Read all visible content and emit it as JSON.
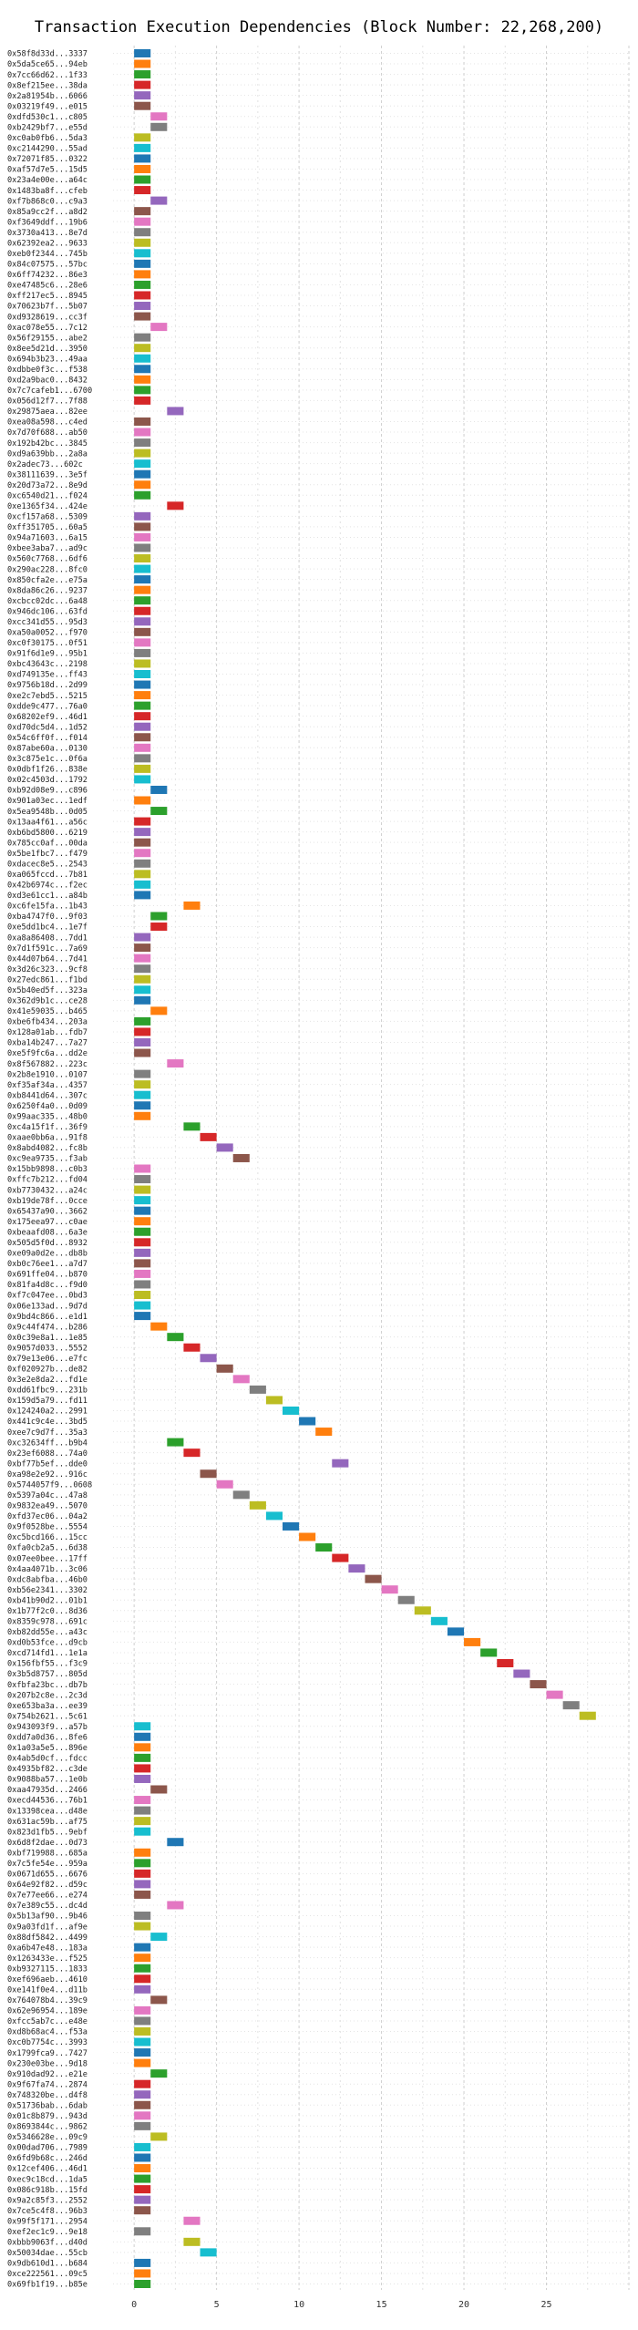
{
  "chart_data": {
    "type": "bar",
    "orientation": "horizontal",
    "title": "Transaction Execution Dependencies (Block Number: 22,268,200)",
    "xlabel": "",
    "ylabel": "",
    "xlim": [
      -1.5,
      30
    ],
    "xticks": [
      0,
      5,
      10,
      15,
      20,
      25
    ],
    "grid": true,
    "legend": "none",
    "palette": [
      "#1f77b4",
      "#ff7f0e",
      "#2ca02c",
      "#d62728",
      "#9467bd",
      "#8c564b",
      "#e377c2",
      "#7f7f7f",
      "#bcbd22",
      "#17becf"
    ],
    "bar_width": 1,
    "transactions": [
      {
        "hash": "0x58f8d33d...3337",
        "start": 0
      },
      {
        "hash": "0x5da5ce65...94eb",
        "start": 0
      },
      {
        "hash": "0x7cc66d62...1f33",
        "start": 0
      },
      {
        "hash": "0x8ef215ee...38da",
        "start": 0
      },
      {
        "hash": "0x2a81954b...6066",
        "start": 0
      },
      {
        "hash": "0x03219f49...e015",
        "start": 0
      },
      {
        "hash": "0xdfd530c1...c805",
        "start": 1
      },
      {
        "hash": "0xb2429bf7...e55d",
        "start": 1
      },
      {
        "hash": "0xc0ab0fb6...5da3",
        "start": 0
      },
      {
        "hash": "0xc2144290...55ad",
        "start": 0
      },
      {
        "hash": "0x72071f85...0322",
        "start": 0
      },
      {
        "hash": "0xaf57d7e5...15d5",
        "start": 0
      },
      {
        "hash": "0x23a4e00e...a64c",
        "start": 0
      },
      {
        "hash": "0x1483ba8f...cfeb",
        "start": 0
      },
      {
        "hash": "0xf7b868c0...c9a3",
        "start": 1
      },
      {
        "hash": "0x85a9cc2f...a8d2",
        "start": 0
      },
      {
        "hash": "0xf3649ddf...19b6",
        "start": 0
      },
      {
        "hash": "0x3730a413...8e7d",
        "start": 0
      },
      {
        "hash": "0x62392ea2...9633",
        "start": 0
      },
      {
        "hash": "0xeb0f2344...745b",
        "start": 0
      },
      {
        "hash": "0x84c07575...57bc",
        "start": 0
      },
      {
        "hash": "0x6ff74232...86e3",
        "start": 0
      },
      {
        "hash": "0xe47485c6...28e6",
        "start": 0
      },
      {
        "hash": "0xff217ec5...8945",
        "start": 0
      },
      {
        "hash": "0x70623b7f...5b07",
        "start": 0
      },
      {
        "hash": "0xd9328619...cc3f",
        "start": 0
      },
      {
        "hash": "0xac078e55...7c12",
        "start": 1
      },
      {
        "hash": "0x56f29155...abe2",
        "start": 0
      },
      {
        "hash": "0x8ee5d21d...3950",
        "start": 0
      },
      {
        "hash": "0x694b3b23...49aa",
        "start": 0
      },
      {
        "hash": "0xdbbe0f3c...f538",
        "start": 0
      },
      {
        "hash": "0xd2a9bac0...8432",
        "start": 0
      },
      {
        "hash": "0x7c7cafeb1...6700",
        "start": 0
      },
      {
        "hash": "0x056d12f7...7f88",
        "start": 0
      },
      {
        "hash": "0x29875aea...82ee",
        "start": 2
      },
      {
        "hash": "0xea08a598...c4ed",
        "start": 0
      },
      {
        "hash": "0x7d70f688...ab50",
        "start": 0
      },
      {
        "hash": "0x192b42bc...3845",
        "start": 0
      },
      {
        "hash": "0xd9a639bb...2a8a",
        "start": 0
      },
      {
        "hash": "0x2adec73...602c",
        "start": 0
      },
      {
        "hash": "0x38111639...3e5f",
        "start": 0
      },
      {
        "hash": "0x20d73a72...8e9d",
        "start": 0
      },
      {
        "hash": "0xc6540d21...f024",
        "start": 0
      },
      {
        "hash": "0xe1365f34...424e",
        "start": 2
      },
      {
        "hash": "0xcf157a68...5309",
        "start": 0
      },
      {
        "hash": "0xff351705...60a5",
        "start": 0
      },
      {
        "hash": "0x94a71603...6a15",
        "start": 0
      },
      {
        "hash": "0xbee3aba7...ad9c",
        "start": 0
      },
      {
        "hash": "0x560c7768...6df6",
        "start": 0
      },
      {
        "hash": "0x290ac228...8fc0",
        "start": 0
      },
      {
        "hash": "0x850cfa2e...e75a",
        "start": 0
      },
      {
        "hash": "0x8da86c26...9237",
        "start": 0
      },
      {
        "hash": "0xcbcc02dc...6a48",
        "start": 0
      },
      {
        "hash": "0x946dc106...63fd",
        "start": 0
      },
      {
        "hash": "0xcc341d55...95d3",
        "start": 0
      },
      {
        "hash": "0xa50a0052...f970",
        "start": 0
      },
      {
        "hash": "0xc0f30175...0f51",
        "start": 0
      },
      {
        "hash": "0x91f6d1e9...95b1",
        "start": 0
      },
      {
        "hash": "0xbc43643c...2198",
        "start": 0
      },
      {
        "hash": "0xd749135e...ff43",
        "start": 0
      },
      {
        "hash": "0x9756b18d...2d99",
        "start": 0
      },
      {
        "hash": "0xe2c7ebd5...5215",
        "start": 0
      },
      {
        "hash": "0xdde9c477...76a0",
        "start": 0
      },
      {
        "hash": "0x68202ef9...46d1",
        "start": 0
      },
      {
        "hash": "0xd70dc5d4...1d52",
        "start": 0
      },
      {
        "hash": "0x54c6ff0f...f014",
        "start": 0
      },
      {
        "hash": "0x87abe60a...0130",
        "start": 0
      },
      {
        "hash": "0x3c875e1c...0f6a",
        "start": 0
      },
      {
        "hash": "0x0dbf1f26...838e",
        "start": 0
      },
      {
        "hash": "0x02c4503d...1792",
        "start": 0
      },
      {
        "hash": "0xb92d08e9...c896",
        "start": 1
      },
      {
        "hash": "0x901a03ec...1edf",
        "start": 0
      },
      {
        "hash": "0x5ea9548b...0d05",
        "start": 1
      },
      {
        "hash": "0x13aa4f61...a56c",
        "start": 0
      },
      {
        "hash": "0xb6bd5800...6219",
        "start": 0
      },
      {
        "hash": "0x785cc0af...00da",
        "start": 0
      },
      {
        "hash": "0x5be1fbc7...f479",
        "start": 0
      },
      {
        "hash": "0xdacec8e5...2543",
        "start": 0
      },
      {
        "hash": "0xa065fccd...7b81",
        "start": 0
      },
      {
        "hash": "0x42b6974c...f2ec",
        "start": 0
      },
      {
        "hash": "0xd3e61cc1...a84b",
        "start": 0
      },
      {
        "hash": "0xc6fe15fa...1b43",
        "start": 3
      },
      {
        "hash": "0xba4747f0...9f03",
        "start": 1
      },
      {
        "hash": "0xe5dd1bc4...1e7f",
        "start": 1
      },
      {
        "hash": "0xa8a86408...7dd1",
        "start": 0
      },
      {
        "hash": "0x7d1f591c...7a69",
        "start": 0
      },
      {
        "hash": "0x44d07b64...7d41",
        "start": 0
      },
      {
        "hash": "0x3d26c323...9cf8",
        "start": 0
      },
      {
        "hash": "0x27edc861...f1bd",
        "start": 0
      },
      {
        "hash": "0x5b40ed5f...323a",
        "start": 0
      },
      {
        "hash": "0x362d9b1c...ce28",
        "start": 0
      },
      {
        "hash": "0x41e59035...b465",
        "start": 1
      },
      {
        "hash": "0xbe6fb434...203a",
        "start": 0
      },
      {
        "hash": "0x128a01ab...fdb7",
        "start": 0
      },
      {
        "hash": "0xba14b247...7a27",
        "start": 0
      },
      {
        "hash": "0xe5f9fc6a...dd2e",
        "start": 0
      },
      {
        "hash": "0x8f567882...223c",
        "start": 2
      },
      {
        "hash": "0x2b8e1910...0107",
        "start": 0
      },
      {
        "hash": "0xf35af34a...4357",
        "start": 0
      },
      {
        "hash": "0xb8441d64...307c",
        "start": 0
      },
      {
        "hash": "0x6250f4a0...0d09",
        "start": 0
      },
      {
        "hash": "0x99aac335...48b0",
        "start": 0
      },
      {
        "hash": "0xc4a15f1f...36f9",
        "start": 3
      },
      {
        "hash": "0xaae0bb6a...91f8",
        "start": 4
      },
      {
        "hash": "0x8abd4082...fc8b",
        "start": 5
      },
      {
        "hash": "0xc9ea9735...f3ab",
        "start": 6
      },
      {
        "hash": "0x15bb9898...c0b3",
        "start": 0
      },
      {
        "hash": "0xffc7b212...fd04",
        "start": 0
      },
      {
        "hash": "0xb7730432...a24c",
        "start": 0
      },
      {
        "hash": "0xb19de78f...0cce",
        "start": 0
      },
      {
        "hash": "0x65437a90...3662",
        "start": 0
      },
      {
        "hash": "0x175eea97...c0ae",
        "start": 0
      },
      {
        "hash": "0xbeaafd08...6a3e",
        "start": 0
      },
      {
        "hash": "0x505d5f0d...8932",
        "start": 0
      },
      {
        "hash": "0xe09a0d2e...db8b",
        "start": 0
      },
      {
        "hash": "0xb0c76ee1...a7d7",
        "start": 0
      },
      {
        "hash": "0x691ffe04...b870",
        "start": 0
      },
      {
        "hash": "0x81fa4d8c...f9d0",
        "start": 0
      },
      {
        "hash": "0xf7c047ee...0bd3",
        "start": 0
      },
      {
        "hash": "0x06e133ad...9d7d",
        "start": 0
      },
      {
        "hash": "0x9bd4c866...e1d1",
        "start": 0
      },
      {
        "hash": "0x9c44f474...b286",
        "start": 1
      },
      {
        "hash": "0x0c39e8a1...1e85",
        "start": 2
      },
      {
        "hash": "0x9057d033...5552",
        "start": 3
      },
      {
        "hash": "0x79e13e06...e7fc",
        "start": 4
      },
      {
        "hash": "0xf020927b...de82",
        "start": 5
      },
      {
        "hash": "0x3e2e8da2...fd1e",
        "start": 6
      },
      {
        "hash": "0xdd61fbc9...231b",
        "start": 7
      },
      {
        "hash": "0x159d5a79...fd11",
        "start": 8
      },
      {
        "hash": "0x124240a2...2991",
        "start": 9
      },
      {
        "hash": "0x441c9c4e...3bd5",
        "start": 10
      },
      {
        "hash": "0xee7c9d7f...35a3",
        "start": 11
      },
      {
        "hash": "0xc32634ff...b9b4",
        "start": 2
      },
      {
        "hash": "0x23ef6088...74a0",
        "start": 3
      },
      {
        "hash": "0xbf77b5ef...dde0",
        "start": 12
      },
      {
        "hash": "0xa98e2e92...916c",
        "start": 4
      },
      {
        "hash": "0x5744057f9...0608",
        "start": 5
      },
      {
        "hash": "0x5397a04c...47a8",
        "start": 6
      },
      {
        "hash": "0x9832ea49...5070",
        "start": 7
      },
      {
        "hash": "0xfd37ec06...04a2",
        "start": 8
      },
      {
        "hash": "0x9f0528be...5554",
        "start": 9
      },
      {
        "hash": "0xc5bcd166...15cc",
        "start": 10
      },
      {
        "hash": "0xfa0cb2a5...6d38",
        "start": 11
      },
      {
        "hash": "0x07ee0bee...17ff",
        "start": 12
      },
      {
        "hash": "0x4aa4071b...3c06",
        "start": 13
      },
      {
        "hash": "0xdc8abfba...46b0",
        "start": 14
      },
      {
        "hash": "0xb56e2341...3302",
        "start": 15
      },
      {
        "hash": "0xb41b90d2...01b1",
        "start": 16
      },
      {
        "hash": "0x1b77f2c0...8d36",
        "start": 17
      },
      {
        "hash": "0x8359c978...691c",
        "start": 18
      },
      {
        "hash": "0xb82dd55e...a43c",
        "start": 19
      },
      {
        "hash": "0xd0b53fce...d9cb",
        "start": 20
      },
      {
        "hash": "0xcd714fd1...1e1a",
        "start": 21
      },
      {
        "hash": "0x156fbf55...f3c9",
        "start": 22
      },
      {
        "hash": "0x3b5d8757...805d",
        "start": 23
      },
      {
        "hash": "0xfbfa23bc...db7b",
        "start": 24
      },
      {
        "hash": "0x207b2c8e...2c3d",
        "start": 25
      },
      {
        "hash": "0xe653ba3a...ee39",
        "start": 26
      },
      {
        "hash": "0x754b2621...5c61",
        "start": 27
      },
      {
        "hash": "0x943093f9...a57b",
        "start": 0
      },
      {
        "hash": "0xdd7a0d36...8fe6",
        "start": 0
      },
      {
        "hash": "0x1a03a5e5...896e",
        "start": 0
      },
      {
        "hash": "0x4ab5d0cf...fdcc",
        "start": 0
      },
      {
        "hash": "0x4935bf82...c3de",
        "start": 0
      },
      {
        "hash": "0x9088ba57...1e0b",
        "start": 0
      },
      {
        "hash": "0xaa47935d...2466",
        "start": 1
      },
      {
        "hash": "0xecd44536...76b1",
        "start": 0
      },
      {
        "hash": "0x13398cea...d48e",
        "start": 0
      },
      {
        "hash": "0x631ac59b...af75",
        "start": 0
      },
      {
        "hash": "0x823d1fb5...9ebf",
        "start": 0
      },
      {
        "hash": "0x6d8f2dae...0d73",
        "start": 2
      },
      {
        "hash": "0xbf719988...685a",
        "start": 0
      },
      {
        "hash": "0x7c5fe54e...959a",
        "start": 0
      },
      {
        "hash": "0x0671d655...6676",
        "start": 0
      },
      {
        "hash": "0x64e92f82...d59c",
        "start": 0
      },
      {
        "hash": "0x7e77ee66...e274",
        "start": 0
      },
      {
        "hash": "0x7e389c55...dc4d",
        "start": 2
      },
      {
        "hash": "0x5b13af90...9b46",
        "start": 0
      },
      {
        "hash": "0x9a03fd1f...af9e",
        "start": 0
      },
      {
        "hash": "0x88df5842...4499",
        "start": 1
      },
      {
        "hash": "0xa6b47e48...183a",
        "start": 0
      },
      {
        "hash": "0x1263433e...f525",
        "start": 0
      },
      {
        "hash": "0xb9327115...1833",
        "start": 0
      },
      {
        "hash": "0xef696aeb...4610",
        "start": 0
      },
      {
        "hash": "0xe141f0e4...d11b",
        "start": 0
      },
      {
        "hash": "0x764078b4...39c9",
        "start": 1
      },
      {
        "hash": "0x62e96954...189e",
        "start": 0
      },
      {
        "hash": "0xfcc5ab7c...e48e",
        "start": 0
      },
      {
        "hash": "0xd8b68ac4...f53a",
        "start": 0
      },
      {
        "hash": "0xc0b7754c...3993",
        "start": 0
      },
      {
        "hash": "0x1799fca9...7427",
        "start": 0
      },
      {
        "hash": "0x230e03be...9d18",
        "start": 0
      },
      {
        "hash": "0x910dad92...e21e",
        "start": 1
      },
      {
        "hash": "0x9f67fa74...2874",
        "start": 0
      },
      {
        "hash": "0x748320be...d4f8",
        "start": 0
      },
      {
        "hash": "0x51736bab...6dab",
        "start": 0
      },
      {
        "hash": "0x01c8b879...943d",
        "start": 0
      },
      {
        "hash": "0x8693844c...9862",
        "start": 0
      },
      {
        "hash": "0x5346628e...09c9",
        "start": 1
      },
      {
        "hash": "0x00dad706...7989",
        "start": 0
      },
      {
        "hash": "0x6fd9b68c...246d",
        "start": 0
      },
      {
        "hash": "0x12cef406...46d1",
        "start": 0
      },
      {
        "hash": "0xec9c18cd...1da5",
        "start": 0
      },
      {
        "hash": "0x086c918b...15fd",
        "start": 0
      },
      {
        "hash": "0x9a2c85f3...2552",
        "start": 0
      },
      {
        "hash": "0x7ce5c4f8...96b3",
        "start": 0
      },
      {
        "hash": "0x99f5f171...2954",
        "start": 3
      },
      {
        "hash": "0xef2ec1c9...9e18",
        "start": 0
      },
      {
        "hash": "0xbbb9063f...d40d",
        "start": 3
      },
      {
        "hash": "0x50034dae...55cb",
        "start": 4
      },
      {
        "hash": "0x9db610d1...b684",
        "start": 0
      },
      {
        "hash": "0xce222561...09c5",
        "start": 0
      },
      {
        "hash": "0x69fb1f19...b85e",
        "start": 0
      }
    ]
  }
}
